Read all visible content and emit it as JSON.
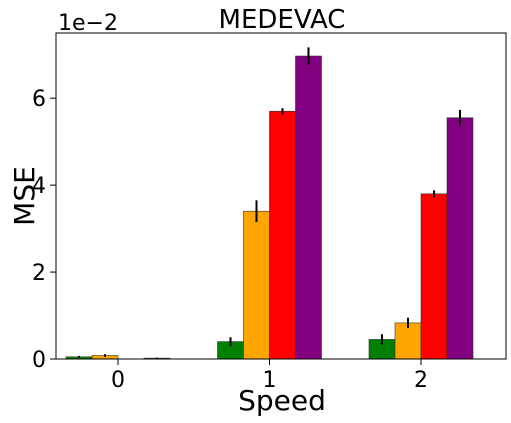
{
  "chart_data": {
    "type": "bar",
    "title": "MEDEVAC",
    "xlabel": "Speed",
    "ylabel": "MSE",
    "scale_label": "1e−2",
    "categories": [
      "0",
      "1",
      "2"
    ],
    "ylim": [
      0,
      7.5
    ],
    "yticks": [
      0,
      2,
      4,
      6
    ],
    "ytick_labels": [
      "0",
      "2",
      "4",
      "6"
    ],
    "grid": false,
    "legend": "none",
    "series": [
      {
        "color": "#008000",
        "values": [
          0.05,
          0.4,
          0.45
        ],
        "errors": [
          0.02,
          0.1,
          0.12
        ]
      },
      {
        "color": "#FFA500",
        "values": [
          0.08,
          3.4,
          0.83
        ],
        "errors": [
          0.03,
          0.25,
          0.12
        ]
      },
      {
        "color": "#FF0000",
        "values": [
          0.0,
          5.7,
          3.8
        ],
        "errors": [
          0.0,
          0.07,
          0.08
        ]
      },
      {
        "color": "#800080",
        "values": [
          0.02,
          6.97,
          5.55
        ],
        "errors": [
          0.01,
          0.2,
          0.18
        ]
      }
    ]
  }
}
